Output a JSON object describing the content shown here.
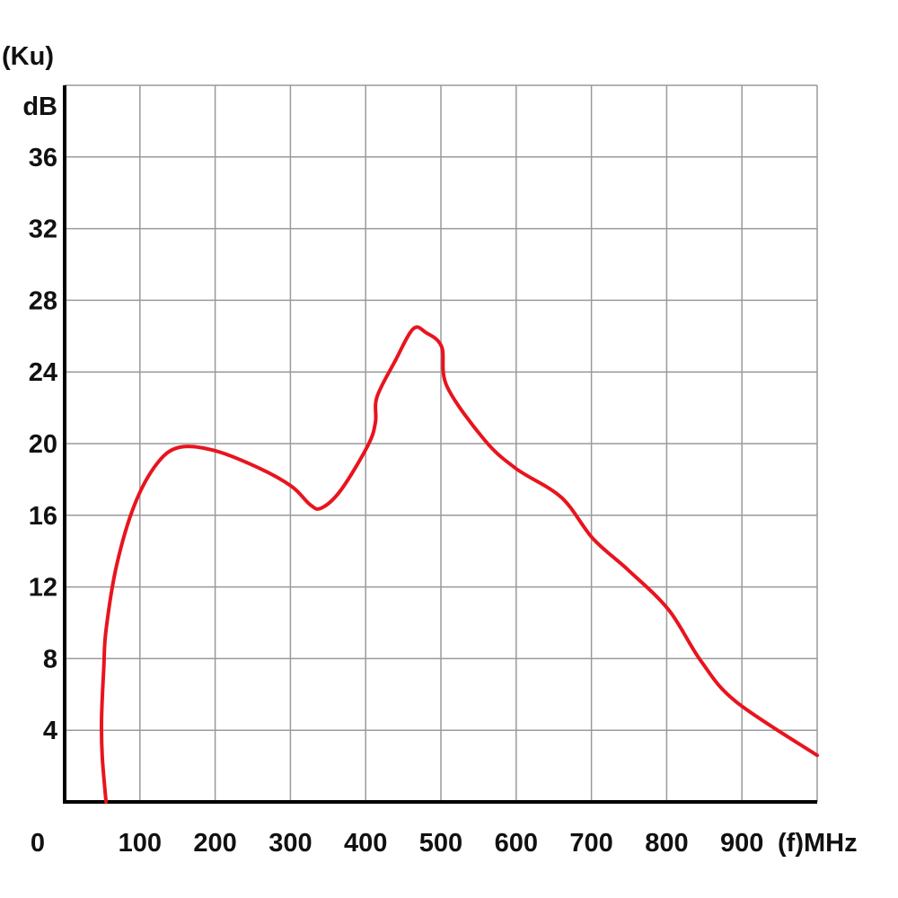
{
  "chart_data": {
    "type": "line",
    "title": "",
    "ylabel_top": "(Ku)",
    "ylabel": "dB",
    "xlabel": "(f)MHz",
    "origin_label": "0",
    "xlim": [
      0,
      1000
    ],
    "ylim": [
      0,
      40
    ],
    "grid": true,
    "x_ticks": [
      "100",
      "200",
      "300",
      "400",
      "500",
      "600",
      "700",
      "800",
      "900"
    ],
    "y_ticks": [
      "4",
      "8",
      "12",
      "16",
      "20",
      "24",
      "28",
      "32",
      "36"
    ],
    "line_color": "#e8141e",
    "series": [
      {
        "name": "Ku",
        "x": [
          55,
          50,
          49,
          52,
          55,
          69,
          93,
          123,
          153,
          200,
          260,
          302,
          326,
          341,
          367,
          403,
          413,
          415,
          439,
          463,
          480,
          501,
          508,
          558,
          600,
          660,
          702,
          750,
          803,
          845,
          892,
          1000
        ],
        "y": [
          0,
          2.5,
          4.6,
          7.5,
          9.6,
          13.2,
          16.6,
          18.9,
          19.8,
          19.6,
          18.6,
          17.6,
          16.6,
          16.4,
          17.4,
          19.9,
          21.2,
          22.6,
          24.6,
          26.4,
          26.2,
          25.4,
          23.2,
          20.2,
          18.6,
          17.0,
          14.7,
          12.9,
          10.7,
          7.9,
          5.6,
          2.6
        ]
      }
    ]
  }
}
